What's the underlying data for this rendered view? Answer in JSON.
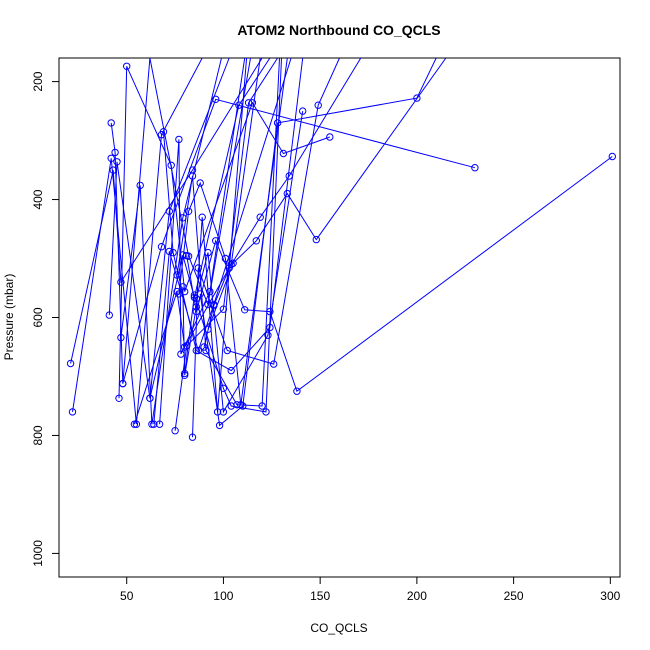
{
  "chart_data": {
    "type": "line",
    "title": "ATOM2 Northbound CO_QCLS",
    "xlabel": "CO_QCLS",
    "ylabel": "Pressure (mbar)",
    "xlim": [
      15,
      305
    ],
    "ylim": [
      1040,
      160
    ],
    "y_reversed": true,
    "xticks": [
      50,
      100,
      150,
      200,
      250,
      300
    ],
    "yticks": [
      200,
      400,
      600,
      800,
      1000
    ],
    "xtick_labels": [
      "50",
      "100",
      "150",
      "200",
      "250",
      "300"
    ],
    "ytick_labels": [
      "200",
      "400",
      "600",
      "800",
      "1000"
    ],
    "grid": false,
    "legend": "none",
    "series_color": "#0000ff",
    "series": [
      {
        "x": [
          21,
          43,
          47,
          84,
          120
        ],
        "y": [
          678,
          350,
          540,
          350,
          160
        ]
      },
      {
        "x": [
          22,
          42,
          55,
          68,
          89
        ],
        "y": [
          760,
          330,
          781,
          290,
          160
        ]
      },
      {
        "x": [
          41,
          45,
          62,
          72,
          103
        ],
        "y": [
          596,
          336,
          737,
          420,
          160
        ]
      },
      {
        "x": [
          42,
          44,
          48,
          68,
          96,
          230
        ],
        "y": [
          270,
          320,
          712,
          480,
          230,
          346
        ]
      },
      {
        "x": [
          46,
          50,
          73,
          80,
          115,
          131,
          155
        ],
        "y": [
          737,
          174,
          342,
          556,
          236,
          322,
          294
        ]
      },
      {
        "x": [
          47,
          57,
          63,
          79,
          99
        ],
        "y": [
          634,
          376,
          781,
          431,
          160
        ]
      },
      {
        "x": [
          48,
          62,
          82,
          92,
          114
        ],
        "y": [
          712,
          160,
          496,
          578,
          160
        ]
      },
      {
        "x": [
          54,
          76,
          80,
          104,
          119
        ],
        "y": [
          781,
          556,
          650,
          510,
          160
        ]
      },
      {
        "x": [
          62,
          79,
          85,
          108,
          124
        ],
        "y": [
          737,
          494,
          566,
          240,
          160
        ]
      },
      {
        "x": [
          64,
          72,
          87,
          95,
          135
        ],
        "y": [
          781,
          488,
          656,
          578,
          160
        ]
      },
      {
        "x": [
          67,
          77,
          78,
          93,
          111
        ],
        "y": [
          781,
          298,
          662,
          556,
          160
        ]
      },
      {
        "x": [
          69,
          74,
          86,
          104,
          124,
          141
        ],
        "y": [
          285,
          490,
          656,
          690,
          617,
          160
        ]
      },
      {
        "x": [
          75,
          81,
          100,
          113,
          128
        ],
        "y": [
          792,
          648,
          586,
          236,
          160
        ]
      },
      {
        "x": [
          76,
          84,
          91,
          107,
          120,
          129
        ],
        "y": [
          528,
          360,
          656,
          748,
          750,
          160
        ]
      },
      {
        "x": [
          77,
          82,
          88,
          101,
          109,
          133
        ],
        "y": [
          560,
          420,
          372,
          500,
          748,
          160
        ]
      },
      {
        "x": [
          79,
          80,
          86,
          89,
          97,
          112
        ],
        "y": [
          548,
          698,
          582,
          430,
          760,
          160
        ]
      },
      {
        "x": [
          80,
          85,
          100,
          104,
          122,
          130
        ],
        "y": [
          695,
          562,
          720,
          750,
          760,
          160
        ]
      },
      {
        "x": [
          81,
          86,
          96,
          111,
          124,
          138,
          301
        ],
        "y": [
          495,
          590,
          470,
          587,
          590,
          725,
          327
        ]
      },
      {
        "x": [
          84,
          87,
          102,
          126,
          149,
          160
        ],
        "y": [
          803,
          516,
          656,
          679,
          240,
          160
        ]
      },
      {
        "x": [
          86,
          92,
          100,
          123,
          141
        ],
        "y": [
          568,
          490,
          760,
          630,
          250
        ]
      },
      {
        "x": [
          88,
          98,
          110,
          128,
          200,
          210
        ],
        "y": [
          560,
          783,
          750,
          270,
          228,
          160
        ]
      },
      {
        "x": [
          90,
          95,
          103,
          119,
          134,
          171
        ],
        "y": [
          650,
          580,
          516,
          430,
          360,
          160
        ]
      },
      {
        "x": [
          92,
          105,
          117,
          133,
          148,
          215
        ],
        "y": [
          620,
          508,
          470,
          390,
          468,
          160
        ]
      }
    ]
  }
}
